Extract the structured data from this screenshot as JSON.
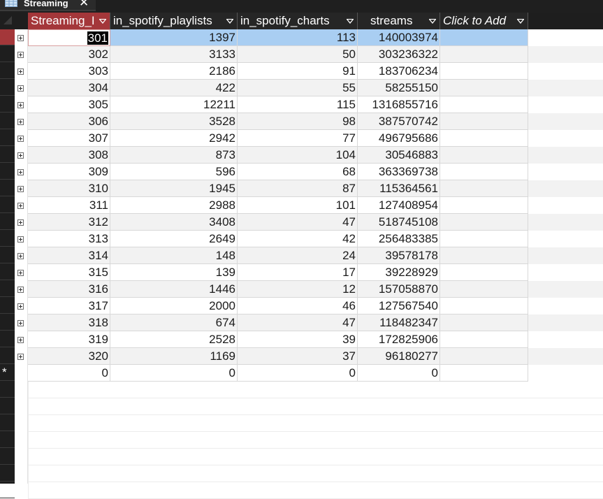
{
  "tab": {
    "title": "Streaming",
    "close": "✕"
  },
  "columns": [
    "Streaming_I",
    "in_spotify_playlists",
    "in_spotify_charts",
    "streams",
    "Click to Add"
  ],
  "rows": [
    [
      "301",
      "1397",
      "113",
      "140003974"
    ],
    [
      "302",
      "3133",
      "50",
      "303236322"
    ],
    [
      "303",
      "2186",
      "91",
      "183706234"
    ],
    [
      "304",
      "422",
      "55",
      "58255150"
    ],
    [
      "305",
      "12211",
      "115",
      "1316855716"
    ],
    [
      "306",
      "3528",
      "98",
      "387570742"
    ],
    [
      "307",
      "2942",
      "77",
      "496795686"
    ],
    [
      "308",
      "873",
      "104",
      "30546883"
    ],
    [
      "309",
      "596",
      "68",
      "363369738"
    ],
    [
      "310",
      "1945",
      "87",
      "115364561"
    ],
    [
      "311",
      "2988",
      "101",
      "127408954"
    ],
    [
      "312",
      "3408",
      "47",
      "518745108"
    ],
    [
      "313",
      "2649",
      "42",
      "256483385"
    ],
    [
      "314",
      "148",
      "24",
      "39578178"
    ],
    [
      "315",
      "139",
      "17",
      "39228929"
    ],
    [
      "316",
      "1446",
      "12",
      "157058870"
    ],
    [
      "317",
      "2000",
      "46",
      "127567540"
    ],
    [
      "318",
      "674",
      "47",
      "118482347"
    ],
    [
      "319",
      "2528",
      "39",
      "172825906"
    ],
    [
      "320",
      "1169",
      "37",
      "96180277"
    ]
  ],
  "new_row": {
    "marker": "*",
    "values": [
      "0",
      "0",
      "0",
      "0"
    ]
  },
  "colors": {
    "accent": "#a4373a",
    "selection": "#a9cef2",
    "header": "#262626"
  }
}
